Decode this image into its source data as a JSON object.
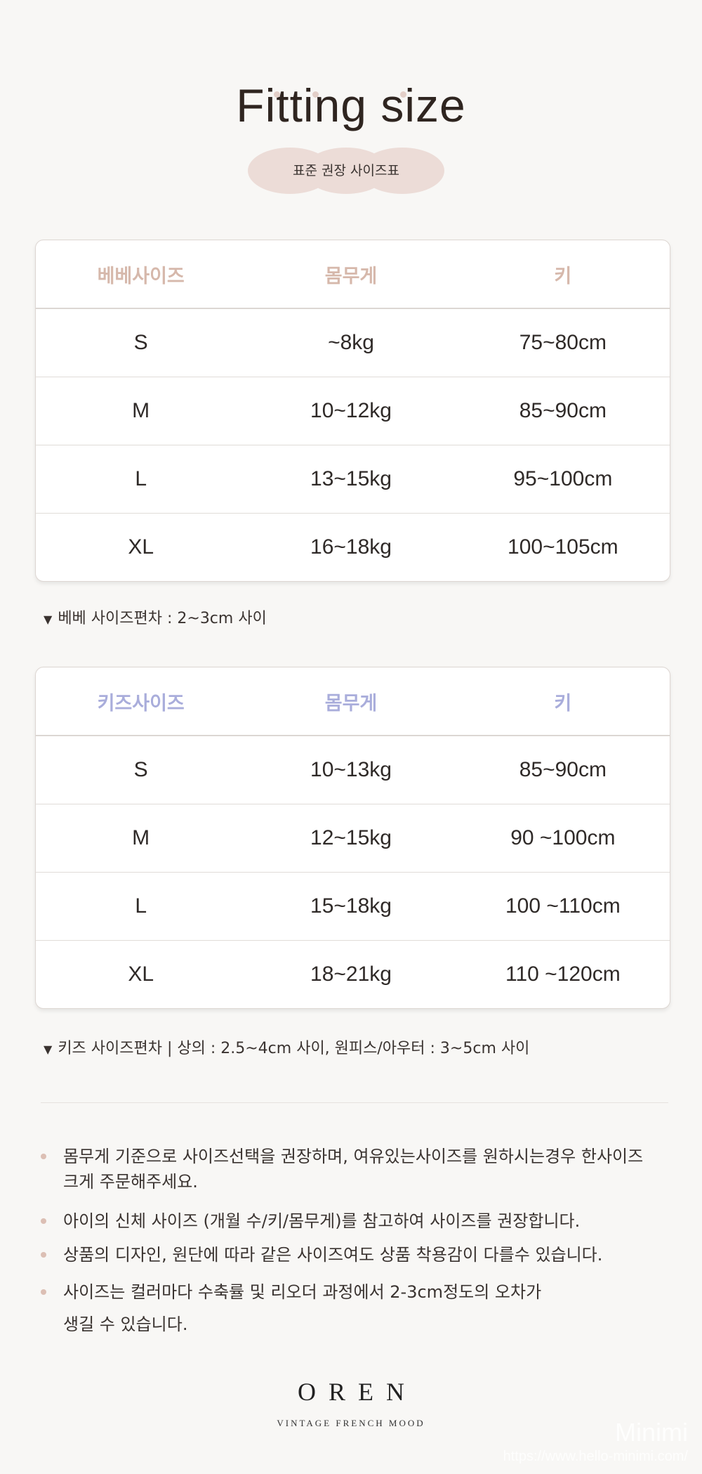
{
  "header": {
    "title": "Fitting size",
    "subtitle": "표준 권장 사이즈표"
  },
  "bebe_table": {
    "headers": [
      "베베사이즈",
      "몸무게",
      "키"
    ],
    "rows": [
      [
        "S",
        "~8kg",
        "75~80cm"
      ],
      [
        "M",
        "10~12kg",
        "85~90cm"
      ],
      [
        "L",
        "13~15kg",
        "95~100cm"
      ],
      [
        "XL",
        "16~18kg",
        "100~105cm"
      ]
    ],
    "header_color": "#d6b8ab"
  },
  "bebe_note": "베베 사이즈편차 : 2~3cm 사이",
  "kids_table": {
    "headers": [
      "키즈사이즈",
      "몸무게",
      "키"
    ],
    "rows": [
      [
        "S",
        "10~13kg",
        "85~90cm"
      ],
      [
        "M",
        "12~15kg",
        "90 ~100cm"
      ],
      [
        "L",
        "15~18kg",
        "100 ~110cm"
      ],
      [
        "XL",
        "18~21kg",
        "110 ~120cm"
      ]
    ],
    "header_color": "#a9addb"
  },
  "kids_note": "키즈 사이즈편차  |  상의 : 2.5~4cm 사이, 원피스/아우터 : 3~5cm 사이",
  "bullets": [
    "몸무게 기준으로 사이즈선택을 권장하며, 여유있는사이즈를 원하시는경우 한사이즈 크게 주문해주세요.",
    "아이의 신체 사이즈 (개월 수/키/몸무게)를 참고하여 사이즈를 권장합니다.",
    "상품의 디자인, 원단에 따라 같은 사이즈여도 상품 착용감이 다를수 있습니다.",
    "사이즈는 컬러마다 수축률 및 리오더 과정에서 2-3cm정도의 오차가 생길 수 있습니다."
  ],
  "brand": {
    "logo": "OREN",
    "tagline": "VINTAGE FRENCH MOOD"
  },
  "watermark": {
    "name": "Minimi",
    "url": "https://www.hello-minimi.com/"
  }
}
